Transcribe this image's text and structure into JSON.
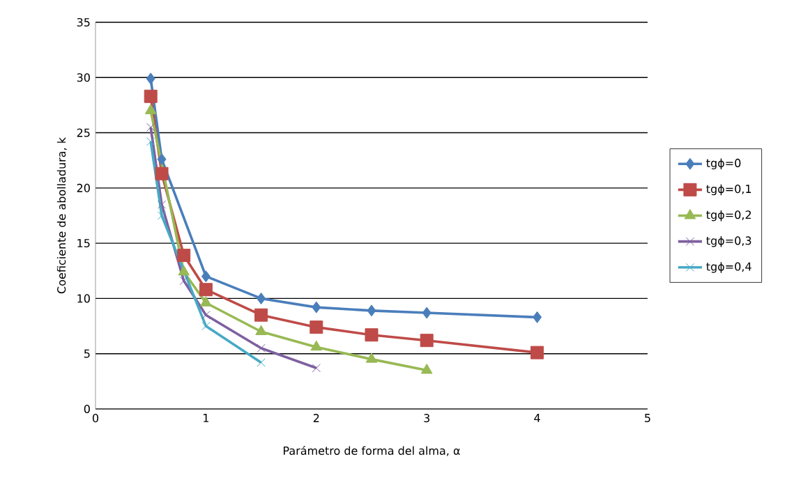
{
  "chart_data": {
    "type": "line",
    "xlabel": "Parámetro de forma del alma, α",
    "ylabel": "Coeficiente de abolladura, k",
    "xlim": [
      0,
      5
    ],
    "xticks": [
      0,
      1,
      2,
      3,
      4,
      5
    ],
    "ylim": [
      0,
      35
    ],
    "yticks": [
      0,
      5,
      10,
      15,
      20,
      25,
      30,
      35
    ],
    "grid": "y",
    "legend": "right",
    "series": [
      {
        "name": "tgϕ=0",
        "color": "#4a7ebb",
        "marker": "diamond",
        "x": [
          0.5,
          0.6,
          1,
          1.5,
          2,
          2.5,
          3,
          4
        ],
        "values": [
          29.9,
          22.6,
          12.0,
          10.0,
          9.2,
          8.9,
          8.7,
          8.3
        ]
      },
      {
        "name": "tgϕ=0,1",
        "color": "#be4b48",
        "marker": "square",
        "x": [
          0.5,
          0.6,
          0.8,
          1,
          1.5,
          2,
          2.5,
          3,
          4
        ],
        "values": [
          28.3,
          21.3,
          13.9,
          10.8,
          8.5,
          7.4,
          6.7,
          6.2,
          5.1
        ]
      },
      {
        "name": "tgϕ=0,2",
        "color": "#98b954",
        "marker": "triangle",
        "x": [
          0.5,
          0.8,
          1,
          1.5,
          2,
          2.5,
          3
        ],
        "values": [
          27.0,
          12.4,
          9.6,
          7.0,
          5.6,
          4.5,
          3.5
        ]
      },
      {
        "name": "tgϕ=0,3",
        "color": "#7d60a0",
        "marker": "cross",
        "x": [
          0.5,
          0.6,
          0.8,
          1,
          1.5,
          2
        ],
        "values": [
          25.5,
          18.5,
          11.6,
          8.5,
          5.5,
          3.7
        ]
      },
      {
        "name": "tgϕ=0,4",
        "color": "#46aac5",
        "marker": "cross",
        "x": [
          0.5,
          0.6,
          1,
          1.5
        ],
        "values": [
          24.2,
          17.5,
          7.5,
          4.2
        ]
      }
    ]
  }
}
